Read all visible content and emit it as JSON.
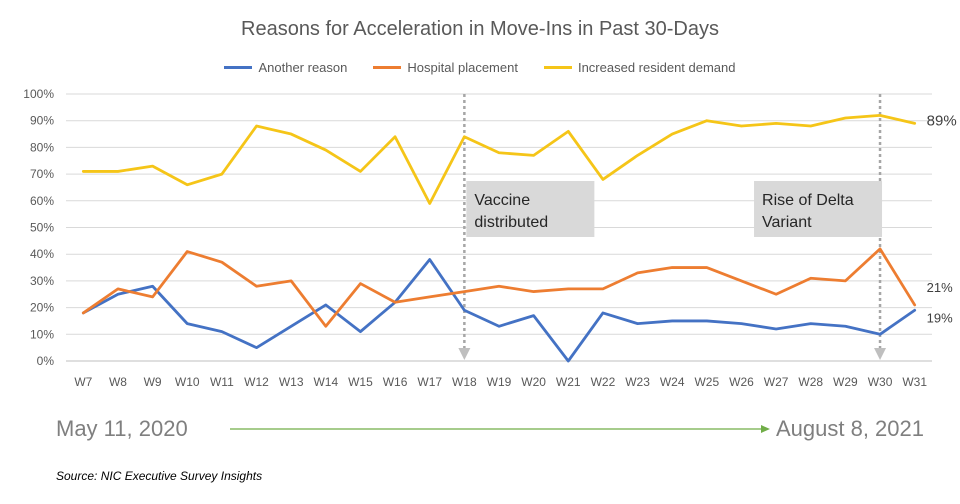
{
  "title": "Reasons for Acceleration in Move-Ins in Past 30-Days",
  "chart_data": {
    "type": "line",
    "title": "Reasons for Acceleration in Move-Ins in Past 30-Days",
    "categories": [
      "W7",
      "W8",
      "W9",
      "W10",
      "W11",
      "W12",
      "W13",
      "W14",
      "W15",
      "W16",
      "W17",
      "W18",
      "W19",
      "W20",
      "W21",
      "W22",
      "W23",
      "W24",
      "W25",
      "W26",
      "W27",
      "W28",
      "W29",
      "W30",
      "W31"
    ],
    "ylim": [
      0,
      100
    ],
    "yticks": [
      "0%",
      "10%",
      "20%",
      "30%",
      "40%",
      "50%",
      "60%",
      "70%",
      "80%",
      "90%",
      "100%"
    ],
    "y_unit": "%",
    "legend_position": "top",
    "series": [
      {
        "name": "Another reason",
        "color": "#4472C4",
        "values": [
          18,
          25,
          28,
          14,
          11,
          5,
          13,
          21,
          11,
          22,
          38,
          19,
          13,
          17,
          0,
          18,
          14,
          15,
          15,
          14,
          12,
          14,
          13,
          10,
          19
        ]
      },
      {
        "name": "Hospital placement",
        "color": "#ED7D31",
        "values": [
          18,
          27,
          24,
          41,
          37,
          28,
          30,
          13,
          29,
          22,
          24,
          26,
          28,
          26,
          27,
          27,
          33,
          35,
          35,
          30,
          25,
          31,
          30,
          42,
          21
        ]
      },
      {
        "name": "Increased resident demand",
        "color": "#F5C518",
        "values": [
          71,
          71,
          73,
          66,
          70,
          88,
          85,
          79,
          71,
          84,
          59,
          84,
          78,
          77,
          86,
          68,
          77,
          85,
          90,
          88,
          89,
          88,
          91,
          92,
          89
        ]
      }
    ],
    "end_labels": [
      {
        "series": 2,
        "text": "89%"
      },
      {
        "series": 1,
        "text": "21%"
      },
      {
        "series": 0,
        "text": "19%"
      }
    ],
    "annotations": [
      {
        "category": "W18",
        "text_lines": [
          "Vaccine",
          "distributed"
        ]
      },
      {
        "category": "W30",
        "text_lines": [
          "Rise of Delta",
          "Variant"
        ]
      }
    ]
  },
  "timeline": {
    "start": "May 11, 2020",
    "end": "August 8, 2021",
    "arrow_color": "#70AD47"
  },
  "source": "Source: NIC Executive Survey Insights"
}
